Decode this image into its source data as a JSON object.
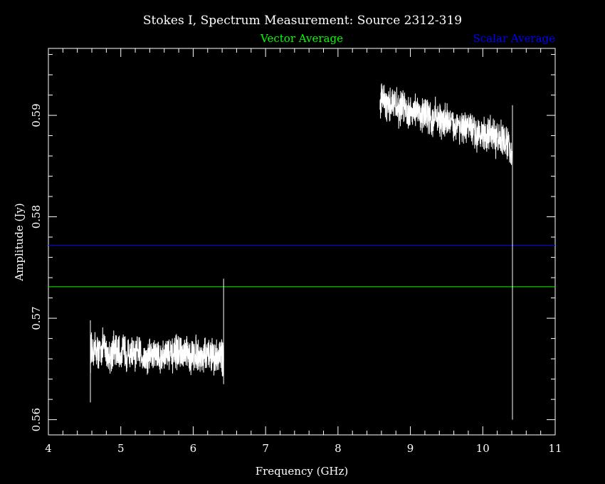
{
  "chart_data": {
    "type": "line",
    "title": "Stokes I, Spectrum Measurement: Source 2312-319",
    "xlabel": "Frequency (GHz)",
    "ylabel": "Amplitude (Jy)",
    "xlim": [
      4,
      11
    ],
    "ylim": [
      0.5585,
      0.5966
    ],
    "x_ticks": [
      4,
      5,
      6,
      7,
      8,
      9,
      10,
      11
    ],
    "x_tick_labels": [
      "4",
      "5",
      "6",
      "7",
      "8",
      "9",
      "10",
      "11"
    ],
    "y_ticks": [
      0.56,
      0.57,
      0.58,
      0.59
    ],
    "y_tick_labels": [
      "0.56",
      "0.57",
      "0.58",
      "0.59"
    ],
    "grid": false,
    "legend": [
      {
        "label": "Vector Average",
        "color": "#00ff00"
      },
      {
        "label": "Scalar Average",
        "color": "#0000ff"
      }
    ],
    "reference_lines": [
      {
        "name": "Vector Average",
        "y": 0.5731,
        "color": "#00ff00"
      },
      {
        "name": "Scalar Average",
        "y": 0.5772,
        "color": "#0000ff"
      }
    ],
    "series": [
      {
        "color": "#ffffff",
        "x": [
          4.58,
          4.6,
          4.65,
          4.7,
          4.75,
          4.8,
          4.85,
          4.9,
          4.95,
          5.0,
          5.05,
          5.1,
          5.15,
          5.2,
          5.25,
          5.3,
          5.35,
          5.4,
          5.45,
          5.5,
          5.55,
          5.6,
          5.65,
          5.7,
          5.75,
          5.8,
          5.85,
          5.9,
          5.95,
          6.0,
          6.05,
          6.1,
          6.15,
          6.2,
          6.25,
          6.3,
          6.35,
          6.4,
          6.42
        ],
        "y": [
          0.5665,
          0.5668,
          0.567,
          0.5665,
          0.5672,
          0.5668,
          0.5662,
          0.567,
          0.5666,
          0.5664,
          0.5669,
          0.5663,
          0.5667,
          0.5661,
          0.5668,
          0.5664,
          0.5659,
          0.5666,
          0.5662,
          0.5667,
          0.566,
          0.5664,
          0.5667,
          0.5661,
          0.5665,
          0.5668,
          0.5662,
          0.5666,
          0.566,
          0.5664,
          0.5667,
          0.5661,
          0.5665,
          0.5662,
          0.5666,
          0.566,
          0.5664,
          0.5662,
          0.5658
        ]
      },
      {
        "color": "#ffffff",
        "x": [
          8.58,
          8.6,
          8.65,
          8.7,
          8.75,
          8.8,
          8.85,
          8.9,
          8.95,
          9.0,
          9.05,
          9.1,
          9.15,
          9.2,
          9.25,
          9.3,
          9.35,
          9.4,
          9.45,
          9.5,
          9.55,
          9.6,
          9.65,
          9.7,
          9.75,
          9.8,
          9.85,
          9.9,
          9.95,
          10.0,
          10.05,
          10.1,
          10.15,
          10.2,
          10.25,
          10.3,
          10.35,
          10.4
        ],
        "y": [
          0.591,
          0.5918,
          0.5912,
          0.5905,
          0.5915,
          0.591,
          0.5904,
          0.5912,
          0.5906,
          0.5901,
          0.5908,
          0.5903,
          0.5898,
          0.5905,
          0.5899,
          0.5894,
          0.5901,
          0.5896,
          0.5891,
          0.5898,
          0.5892,
          0.5887,
          0.5894,
          0.5888,
          0.5884,
          0.5891,
          0.5885,
          0.588,
          0.5887,
          0.5882,
          0.5877,
          0.5884,
          0.5878,
          0.5874,
          0.588,
          0.5875,
          0.587,
          0.5865
        ]
      }
    ],
    "spikes": [
      {
        "x": 4.58,
        "y_min": 0.5617,
        "y_max": 0.5698
      },
      {
        "x": 6.42,
        "y_min": 0.5635,
        "y_max": 0.5739
      },
      {
        "x": 10.41,
        "y_min": 0.56,
        "y_max": 0.591
      }
    ]
  }
}
